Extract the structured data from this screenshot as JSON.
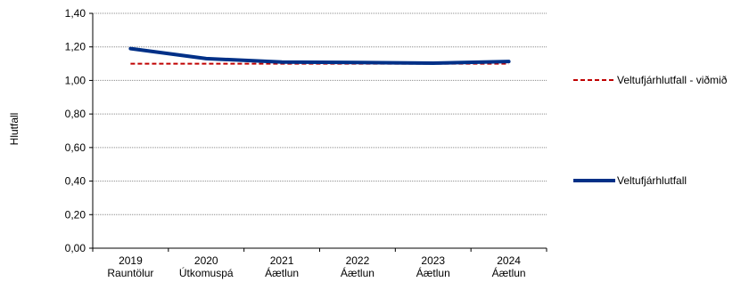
{
  "chart_data": {
    "type": "line",
    "title": "",
    "xlabel": "",
    "ylabel": "Hlutfall",
    "ylim": [
      0,
      1.4
    ],
    "yticks": [
      "0,00",
      "0,20",
      "0,40",
      "0,60",
      "0,80",
      "1,00",
      "1,20",
      "1,40"
    ],
    "categories": [
      {
        "year": "2019",
        "sub": "Rauntölur"
      },
      {
        "year": "2020",
        "sub": "Útkomuspá"
      },
      {
        "year": "2021",
        "sub": "Áætlun"
      },
      {
        "year": "2022",
        "sub": "Áætlun"
      },
      {
        "year": "2023",
        "sub": "Áætlun"
      },
      {
        "year": "2024",
        "sub": "Áætlun"
      }
    ],
    "grid": true,
    "legend_position": "right",
    "series": [
      {
        "name": "Veltufjárhlutfall - viðmið",
        "values": [
          1.1,
          1.1,
          1.1,
          1.1,
          1.1,
          1.1
        ],
        "color": "#c00000",
        "style": "dashed"
      },
      {
        "name": "Veltufjárhlutfall",
        "values": [
          1.19,
          1.13,
          1.11,
          1.107,
          1.103,
          1.113
        ],
        "color": "#003087",
        "style": "solid"
      }
    ]
  }
}
